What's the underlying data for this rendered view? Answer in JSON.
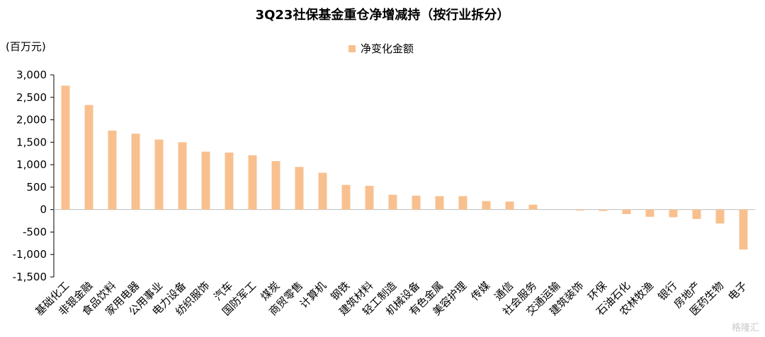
{
  "watermark": "格隆汇",
  "chart_data": {
    "type": "bar",
    "title": "3Q23社保基金重仓净增减持（按行业拆分）",
    "unit_label": "(百万元)",
    "xlabel": "",
    "ylabel": "",
    "ylim": [
      -1500,
      3000
    ],
    "yticks": [
      3000,
      2500,
      2000,
      1500,
      1000,
      500,
      0,
      -500,
      -1000,
      -1500
    ],
    "ytick_labels": [
      "3,000",
      "2,500",
      "2,000",
      "1,500",
      "1,000",
      "500",
      "0",
      "-500",
      "-1,000",
      "-1,500"
    ],
    "grid": false,
    "legend_position": "top-center",
    "bar_color": "#f9c08f",
    "categories": [
      "基础化工",
      "非银金融",
      "食品饮料",
      "家用电器",
      "公用事业",
      "电力设备",
      "纺织服饰",
      "汽车",
      "国防军工",
      "煤炭",
      "商贸零售",
      "计算机",
      "钢铁",
      "建筑材料",
      "轻工制造",
      "机械设备",
      "有色金属",
      "美容护理",
      "传媒",
      "通信",
      "社会服务",
      "交通运输",
      "建筑装饰",
      "环保",
      "石油石化",
      "农林牧渔",
      "银行",
      "房地产",
      "医药生物",
      "电子"
    ],
    "series": [
      {
        "name": "净变化金额",
        "values": [
          2760,
          2330,
          1760,
          1690,
          1560,
          1500,
          1290,
          1270,
          1210,
          1080,
          950,
          820,
          550,
          530,
          330,
          310,
          300,
          300,
          190,
          180,
          110,
          0,
          -20,
          -30,
          -100,
          -160,
          -170,
          -210,
          -310,
          -890
        ]
      }
    ]
  }
}
